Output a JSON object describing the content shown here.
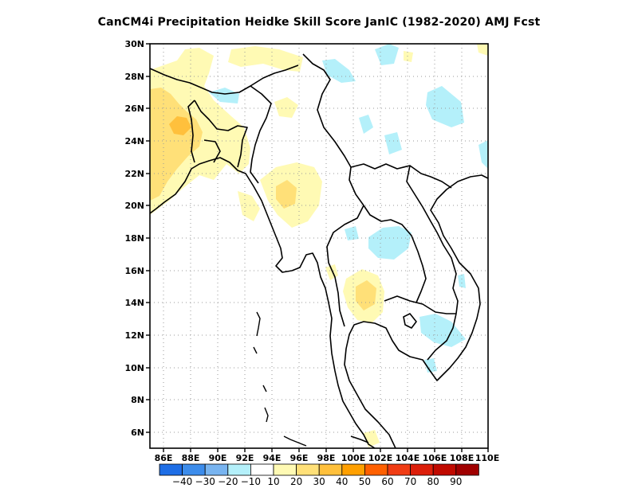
{
  "title": "CanCM4i  Precipitation Heidke Skill Score JanIC (1982-2020) AMJ Fcst",
  "map": {
    "region": "Mainland Southeast Asia",
    "lon_range": [
      85,
      110
    ],
    "lat_range": [
      5,
      30
    ],
    "lon_tick_labels": [
      "86E",
      "88E",
      "90E",
      "92E",
      "94E",
      "96E",
      "98E",
      "100E",
      "102E",
      "104E",
      "106E",
      "108E",
      "110E"
    ],
    "lat_tick_labels": [
      "30N",
      "28N",
      "26N",
      "24N",
      "22N",
      "20N",
      "18N",
      "16N",
      "14N",
      "12N",
      "10N",
      "8N",
      "6N"
    ],
    "grid": "dotted"
  },
  "colorbar": {
    "colors": [
      "#1e6ee6",
      "#3c8ceb",
      "#78b4f0",
      "#b4f0fa",
      "#ffffff",
      "#fffab4",
      "#ffe078",
      "#ffc03c",
      "#ffa000",
      "#ff6000",
      "#f03c14",
      "#dc1e0a",
      "#c00a00",
      "#a00000"
    ],
    "labels": [
      "−40",
      "−30",
      "−20",
      "−10",
      "10",
      "20",
      "30",
      "40",
      "50",
      "60",
      "70",
      "80",
      "90"
    ]
  }
}
